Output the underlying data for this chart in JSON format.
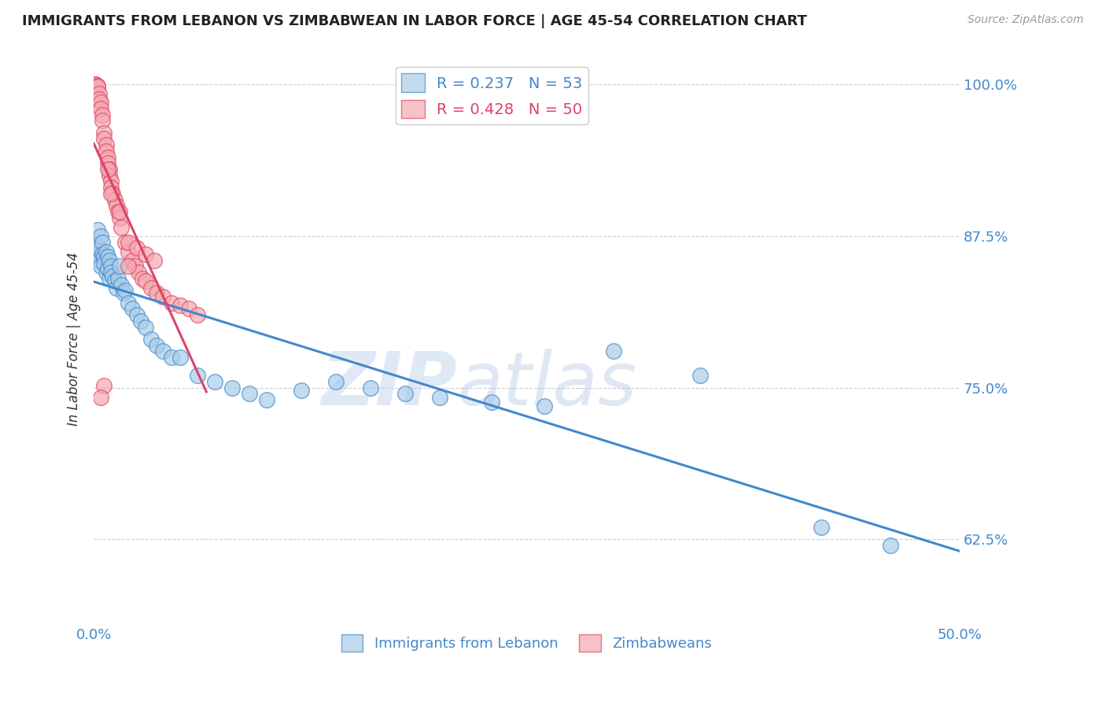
{
  "title": "IMMIGRANTS FROM LEBANON VS ZIMBABWEAN IN LABOR FORCE | AGE 45-54 CORRELATION CHART",
  "source": "Source: ZipAtlas.com",
  "ylabel": "In Labor Force | Age 45-54",
  "xlim": [
    0.0,
    0.5
  ],
  "ylim": [
    0.555,
    1.025
  ],
  "yticks_right": [
    0.625,
    0.75,
    0.875,
    1.0
  ],
  "ytick_labels_right": [
    "62.5%",
    "75.0%",
    "87.5%",
    "100.0%"
  ],
  "blue_color": "#a8cce8",
  "pink_color": "#f4a8b0",
  "blue_line_color": "#4488cc",
  "pink_line_color": "#dd4466",
  "legend_blue_r": "R = 0.237",
  "legend_blue_n": "N = 53",
  "legend_pink_r": "R = 0.428",
  "legend_pink_n": "N = 50",
  "blue_scatter_x": [
    0.001,
    0.002,
    0.002,
    0.003,
    0.003,
    0.004,
    0.004,
    0.005,
    0.005,
    0.006,
    0.006,
    0.007,
    0.007,
    0.008,
    0.008,
    0.009,
    0.009,
    0.01,
    0.01,
    0.011,
    0.012,
    0.013,
    0.014,
    0.015,
    0.016,
    0.017,
    0.018,
    0.02,
    0.022,
    0.025,
    0.027,
    0.03,
    0.033,
    0.036,
    0.04,
    0.045,
    0.05,
    0.06,
    0.07,
    0.08,
    0.09,
    0.1,
    0.12,
    0.14,
    0.16,
    0.18,
    0.2,
    0.23,
    0.26,
    0.3,
    0.35,
    0.42,
    0.46
  ],
  "blue_scatter_y": [
    0.87,
    0.86,
    0.88,
    0.865,
    0.855,
    0.875,
    0.85,
    0.87,
    0.86,
    0.858,
    0.852,
    0.862,
    0.845,
    0.858,
    0.848,
    0.855,
    0.84,
    0.85,
    0.845,
    0.842,
    0.838,
    0.832,
    0.84,
    0.85,
    0.835,
    0.828,
    0.83,
    0.82,
    0.815,
    0.81,
    0.805,
    0.8,
    0.79,
    0.785,
    0.78,
    0.775,
    0.775,
    0.76,
    0.755,
    0.75,
    0.745,
    0.74,
    0.748,
    0.755,
    0.75,
    0.745,
    0.742,
    0.738,
    0.735,
    0.78,
    0.76,
    0.635,
    0.62
  ],
  "pink_scatter_x": [
    0.001,
    0.001,
    0.002,
    0.002,
    0.003,
    0.003,
    0.004,
    0.004,
    0.005,
    0.005,
    0.006,
    0.006,
    0.007,
    0.007,
    0.008,
    0.008,
    0.009,
    0.009,
    0.01,
    0.01,
    0.011,
    0.012,
    0.013,
    0.014,
    0.015,
    0.016,
    0.018,
    0.02,
    0.022,
    0.024,
    0.026,
    0.028,
    0.03,
    0.033,
    0.036,
    0.04,
    0.045,
    0.05,
    0.055,
    0.06,
    0.02,
    0.025,
    0.03,
    0.035,
    0.02,
    0.015,
    0.01,
    0.008,
    0.006,
    0.004
  ],
  "pink_scatter_y": [
    1.0,
    1.0,
    0.999,
    0.998,
    0.992,
    0.988,
    0.985,
    0.98,
    0.975,
    0.97,
    0.96,
    0.955,
    0.95,
    0.945,
    0.94,
    0.935,
    0.93,
    0.925,
    0.92,
    0.915,
    0.91,
    0.905,
    0.9,
    0.895,
    0.89,
    0.882,
    0.87,
    0.862,
    0.855,
    0.85,
    0.845,
    0.84,
    0.838,
    0.832,
    0.828,
    0.825,
    0.82,
    0.818,
    0.815,
    0.81,
    0.87,
    0.865,
    0.86,
    0.855,
    0.85,
    0.895,
    0.91,
    0.93,
    0.752,
    0.742
  ],
  "watermark_zip": "ZIP",
  "watermark_atlas": "atlas",
  "background_color": "#ffffff",
  "grid_color": "#cccccc",
  "title_fontsize": 13,
  "tick_label_color": "#4488cc"
}
